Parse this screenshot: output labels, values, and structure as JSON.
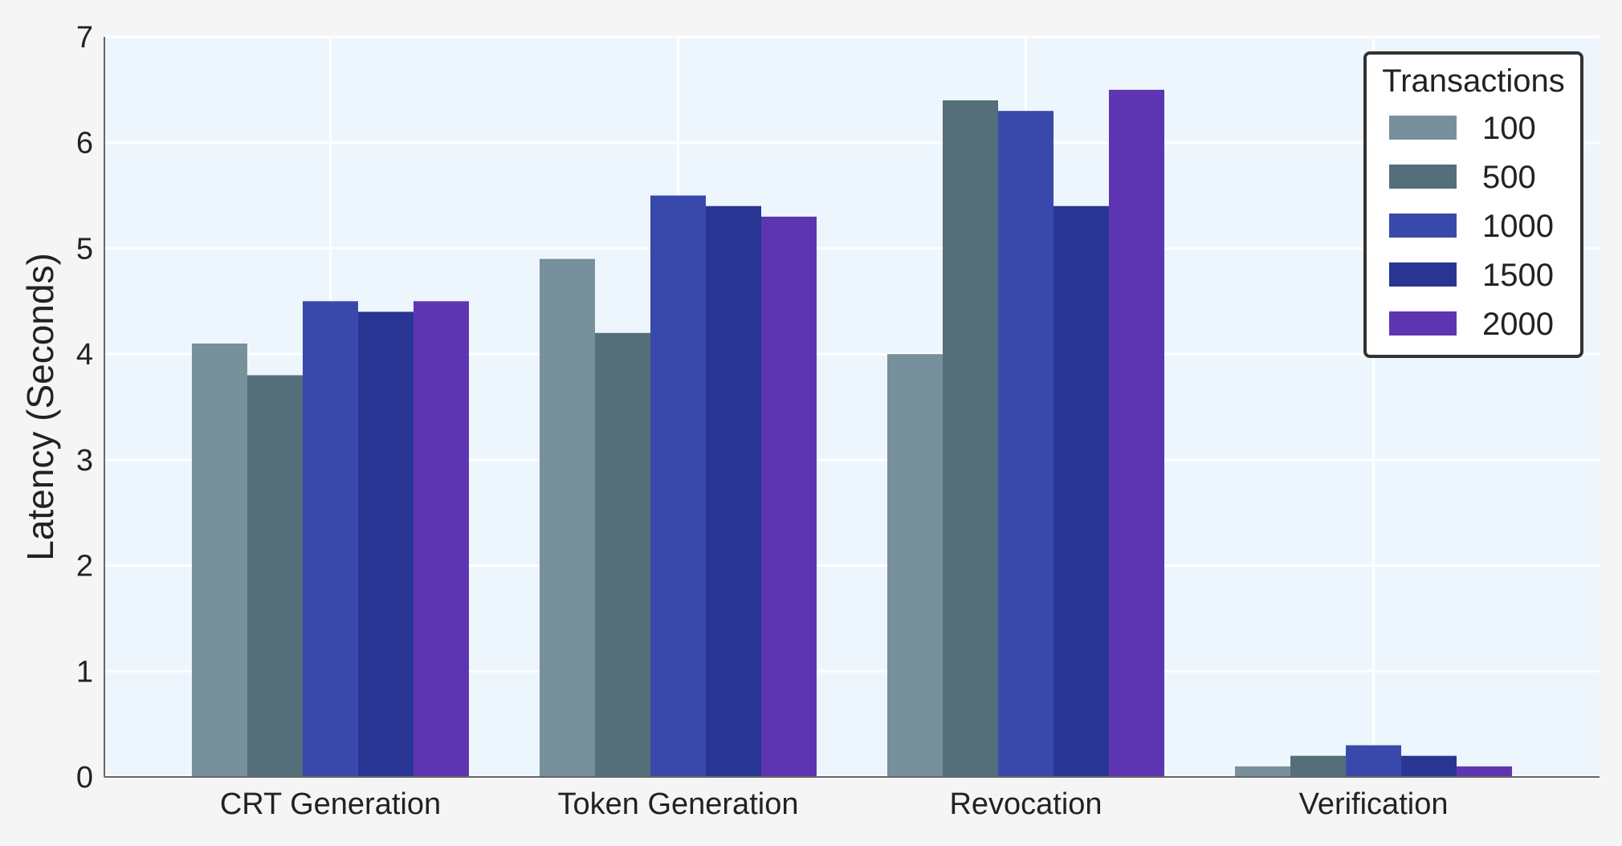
{
  "chart_data": {
    "type": "bar",
    "categories": [
      "CRT Generation",
      "Token Generation",
      "Revocation",
      "Verification"
    ],
    "series": [
      {
        "name": "100",
        "values": [
          4.1,
          4.9,
          4.0,
          0.1
        ],
        "color": "#78909c"
      },
      {
        "name": "500",
        "values": [
          3.8,
          4.2,
          6.4,
          0.2
        ],
        "color": "#546e7a"
      },
      {
        "name": "1000",
        "values": [
          4.5,
          5.5,
          6.3,
          0.3
        ],
        "color": "#3949ab"
      },
      {
        "name": "1500",
        "values": [
          4.4,
          5.4,
          5.4,
          0.2
        ],
        "color": "#283593"
      },
      {
        "name": "2000",
        "values": [
          4.5,
          5.3,
          6.5,
          0.1
        ],
        "color": "#5e35b1"
      }
    ],
    "title": "",
    "xlabel": "",
    "ylabel": "Latency (Seconds)",
    "ylim": [
      0,
      7
    ],
    "yticks": [
      "0",
      "1",
      "2",
      "3",
      "4",
      "5",
      "6",
      "7"
    ],
    "grid": true,
    "legend": {
      "title": "Transactions",
      "placement": "top-right"
    },
    "colors": {
      "plot_background": "#eef6fd",
      "page_background": "#f5f5f5",
      "grid": "#ffffff",
      "axis": "#666666"
    }
  }
}
